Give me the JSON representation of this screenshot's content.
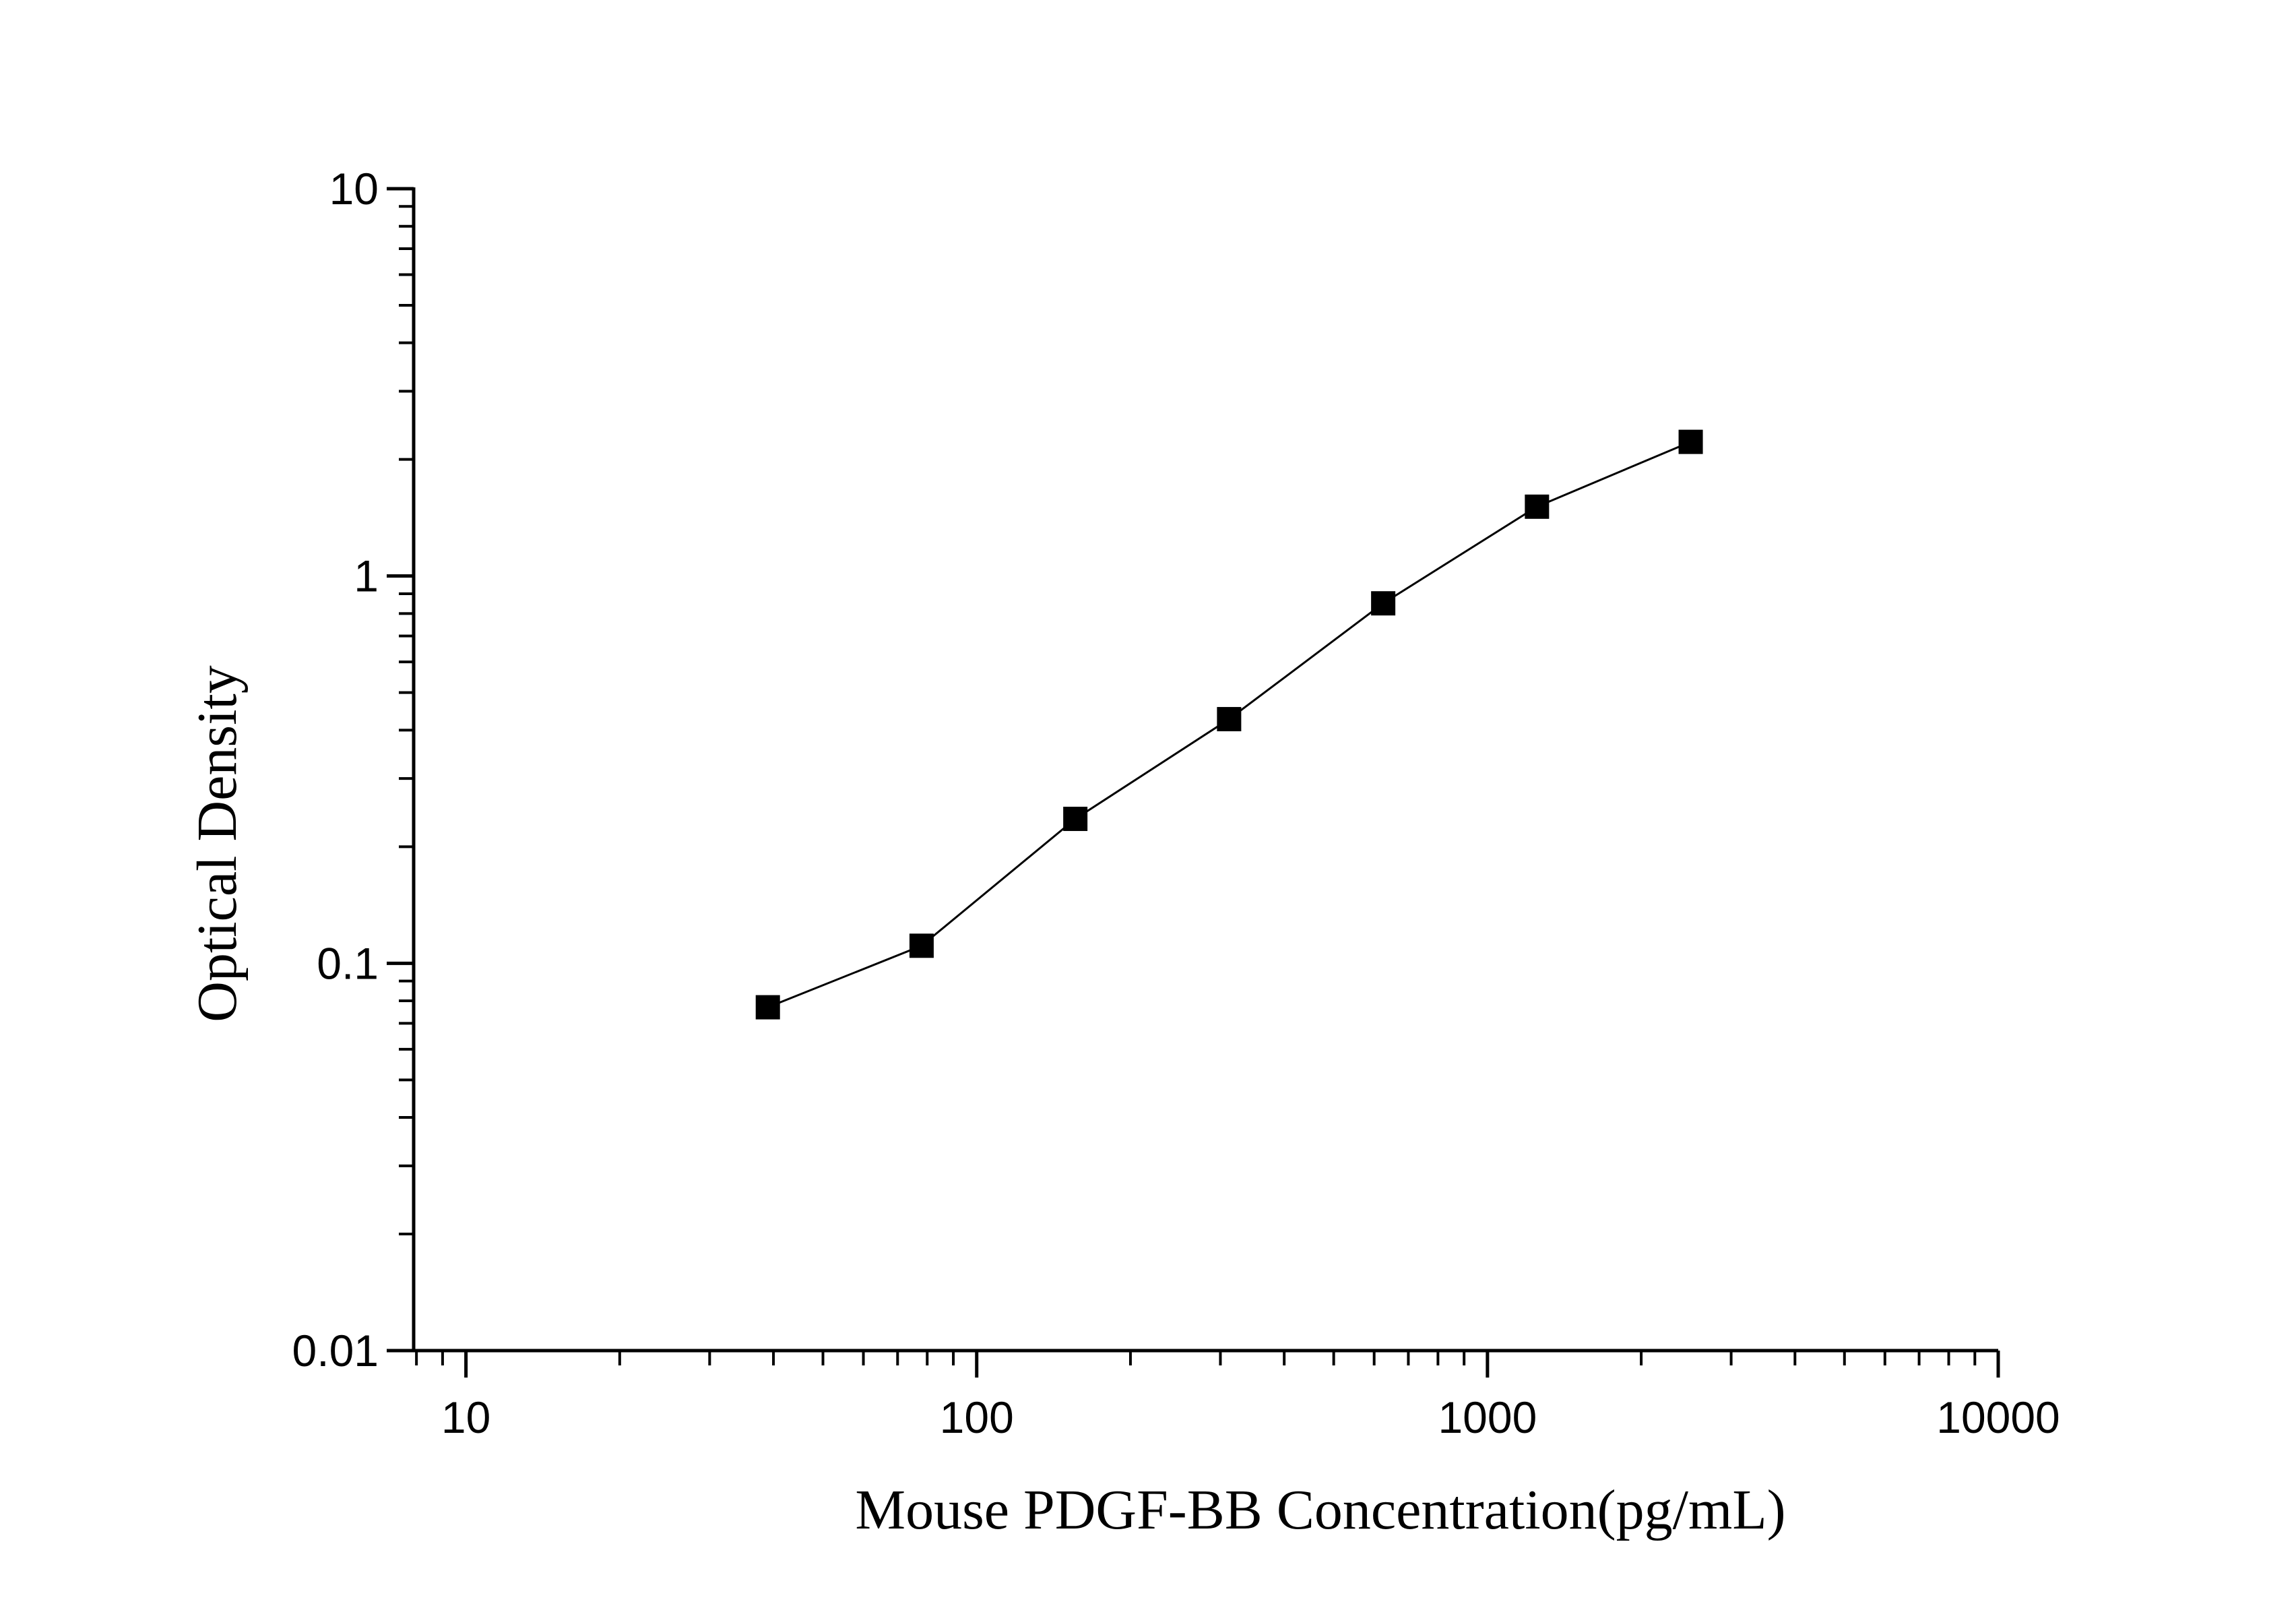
{
  "chart_data": {
    "type": "scatter",
    "xlabel": "Mouse PDGF-BB Concentration(pg/mL)",
    "ylabel": "Optical Density",
    "x_scale": "log",
    "y_scale": "log",
    "xlim": [
      7.9,
      10000
    ],
    "ylim": [
      0.01,
      10
    ],
    "x_ticks": [
      {
        "value": 10,
        "label": "10"
      },
      {
        "value": 100,
        "label": "100"
      },
      {
        "value": 1000,
        "label": "1000"
      },
      {
        "value": 10000,
        "label": "10000"
      }
    ],
    "y_ticks": [
      {
        "value": 0.01,
        "label": "0.01"
      },
      {
        "value": 0.1,
        "label": "0.1"
      },
      {
        "value": 1,
        "label": "1"
      },
      {
        "value": 10,
        "label": "10"
      }
    ],
    "series": [
      {
        "marker": "square",
        "connected": true,
        "color": "#000000",
        "points": [
          {
            "x": 39,
            "y": 0.077
          },
          {
            "x": 78,
            "y": 0.111
          },
          {
            "x": 156,
            "y": 0.236
          },
          {
            "x": 312,
            "y": 0.427
          },
          {
            "x": 625,
            "y": 0.85
          },
          {
            "x": 1250,
            "y": 1.51
          },
          {
            "x": 2500,
            "y": 2.22
          }
        ]
      }
    ],
    "grid": false,
    "legend": "none"
  }
}
